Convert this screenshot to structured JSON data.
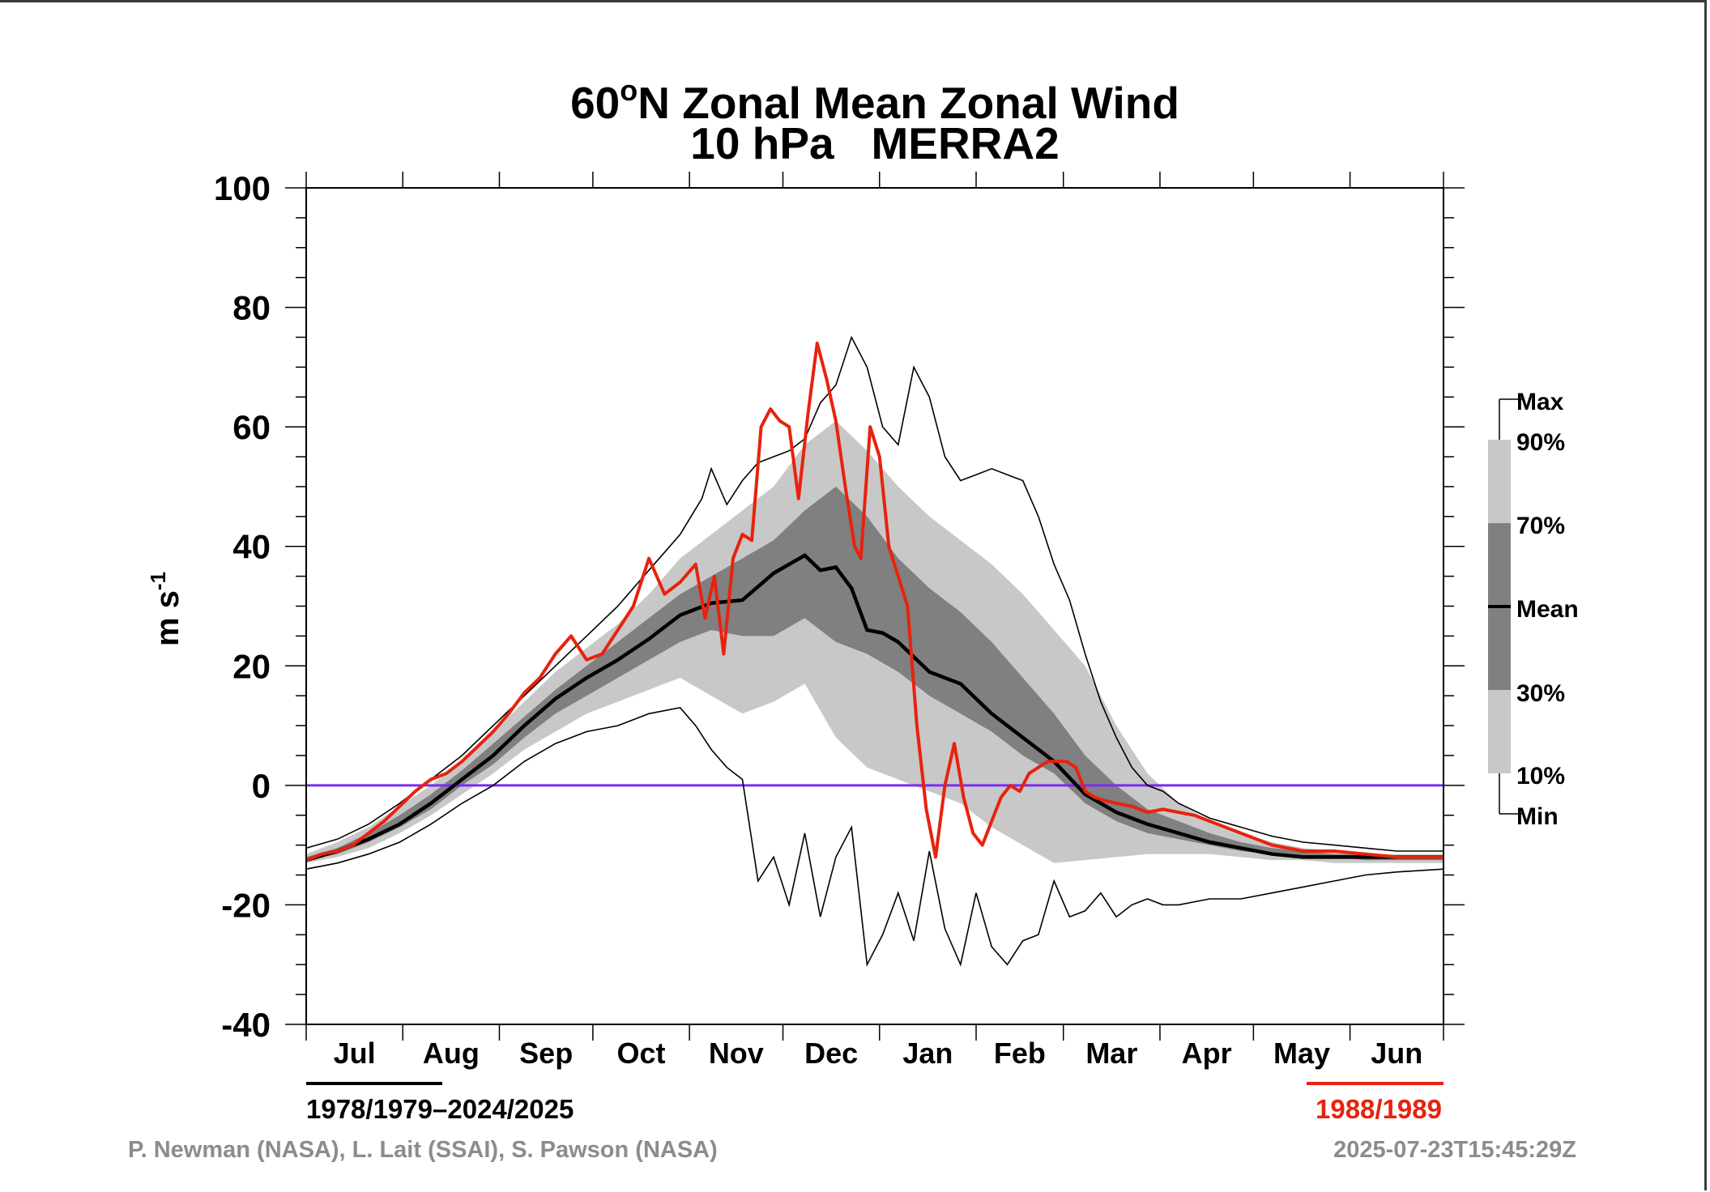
{
  "chart_data": {
    "type": "area",
    "title_prefix": "60",
    "title_sup": "o",
    "title_rest": "N Zonal Mean Zonal Wind",
    "subtitle": "10 hPa   MERRA2",
    "ylabel_base": "m s",
    "ylabel_sup": "-1",
    "ylim": [
      -40,
      100
    ],
    "yticks": [
      -40,
      -20,
      0,
      20,
      40,
      60,
      80,
      100
    ],
    "x_range_days": [
      0,
      365
    ],
    "months": [
      "Jul",
      "Aug",
      "Sep",
      "Oct",
      "Nov",
      "Dec",
      "Jan",
      "Feb",
      "Mar",
      "Apr",
      "May",
      "Jun"
    ],
    "month_lengths": [
      31,
      31,
      30,
      31,
      30,
      31,
      31,
      28,
      31,
      30,
      31,
      30
    ],
    "zero_line_color": "#7b2cf0",
    "band_colors": {
      "outer": "#c8c8c8",
      "inner": "#808080"
    },
    "legend": {
      "max": "Max",
      "p90": "90%",
      "p70": "70%",
      "mean": "Mean",
      "p30": "30%",
      "p10": "10%",
      "min": "Min"
    },
    "climatology_label": "1978/1979–2024/2025",
    "highlight_label": "1988/1989",
    "highlight_color": "#e8220e",
    "credits": "P. Newman (NASA), L. Lait (SSAI), S. Pawson (NASA)",
    "timestamp": "2025-07-23T15:45:29Z",
    "series": {
      "mean": {
        "x": [
          0,
          10,
          20,
          30,
          40,
          50,
          60,
          70,
          80,
          90,
          100,
          110,
          120,
          130,
          140,
          150,
          160,
          165,
          170,
          175,
          180,
          185,
          190,
          195,
          200,
          210,
          220,
          230,
          240,
          250,
          260,
          270,
          280,
          290,
          300,
          310,
          320,
          330,
          340,
          350,
          365
        ],
        "y": [
          -12.5,
          -11,
          -9,
          -6.5,
          -3,
          1,
          5,
          10,
          14.5,
          18,
          21,
          24.5,
          28.5,
          30.5,
          31,
          35.5,
          38.5,
          36,
          36.5,
          33,
          26,
          25.5,
          24,
          21.5,
          19,
          17,
          12,
          8,
          4,
          -1.5,
          -4.5,
          -6.5,
          -8,
          -9.5,
          -10.5,
          -11.5,
          -12,
          -12,
          -12,
          -12,
          -12
        ]
      },
      "p90": {
        "x": [
          0,
          10,
          20,
          30,
          40,
          50,
          60,
          70,
          80,
          90,
          100,
          110,
          120,
          130,
          140,
          150,
          160,
          170,
          180,
          190,
          200,
          210,
          220,
          230,
          240,
          250,
          260,
          270,
          280,
          290,
          300,
          310,
          320,
          330,
          340,
          350,
          365
        ],
        "y": [
          -11.5,
          -9.5,
          -7,
          -3.5,
          0,
          4,
          9,
          14,
          19,
          23,
          27,
          32,
          38,
          42,
          46,
          50,
          57,
          61,
          56,
          50,
          45,
          41,
          37,
          32,
          26,
          20,
          10,
          2,
          -3,
          -6,
          -8,
          -9.5,
          -10.5,
          -11,
          -11.5,
          -11.5,
          -11.5
        ]
      },
      "p70": {
        "x": [
          0,
          10,
          20,
          30,
          40,
          50,
          60,
          70,
          80,
          90,
          100,
          110,
          120,
          130,
          140,
          150,
          160,
          170,
          180,
          190,
          200,
          210,
          220,
          230,
          240,
          250,
          260,
          270,
          280,
          290,
          300,
          310,
          320,
          330,
          340,
          350,
          365
        ],
        "y": [
          -12,
          -10.5,
          -8,
          -5,
          -1.5,
          2.5,
          7,
          11.5,
          16,
          20,
          24,
          28,
          32,
          35,
          38,
          41,
          46,
          50,
          45,
          38,
          33,
          29,
          24,
          18,
          12,
          5,
          0,
          -4,
          -6,
          -8,
          -9.5,
          -10.5,
          -11,
          -11.5,
          -11.5,
          -12,
          -12
        ]
      },
      "p30": {
        "x": [
          0,
          10,
          20,
          30,
          40,
          50,
          60,
          70,
          80,
          90,
          100,
          110,
          120,
          130,
          140,
          150,
          160,
          170,
          180,
          190,
          200,
          210,
          220,
          230,
          240,
          250,
          260,
          270,
          280,
          290,
          300,
          310,
          320,
          330,
          340,
          350,
          365
        ],
        "y": [
          -12.5,
          -11.5,
          -9.5,
          -7,
          -4,
          0,
          3.5,
          8,
          12,
          15,
          18,
          21,
          24,
          26,
          25,
          25,
          28,
          24,
          22,
          19,
          15,
          12,
          9,
          5,
          2,
          -3,
          -6,
          -8,
          -9,
          -10,
          -11,
          -11.5,
          -12,
          -12,
          -12.5,
          -12.5,
          -12.5
        ]
      },
      "p10": {
        "x": [
          0,
          10,
          20,
          30,
          40,
          50,
          60,
          70,
          80,
          90,
          100,
          110,
          120,
          130,
          140,
          150,
          160,
          170,
          180,
          190,
          200,
          210,
          220,
          230,
          240,
          250,
          260,
          270,
          280,
          290,
          300,
          310,
          320,
          330,
          340,
          350,
          365
        ],
        "y": [
          -13,
          -12,
          -10.5,
          -8,
          -5,
          -1.5,
          2,
          6,
          9,
          12,
          14,
          16,
          18,
          15,
          12,
          14,
          17,
          8,
          3,
          1,
          -1,
          -3,
          -7,
          -10,
          -13,
          -12.5,
          -12,
          -11.5,
          -11.5,
          -11.5,
          -12,
          -12.5,
          -12.5,
          -13,
          -13,
          -13,
          -13
        ]
      },
      "max": {
        "x": [
          0,
          10,
          20,
          30,
          40,
          50,
          60,
          70,
          80,
          90,
          100,
          110,
          120,
          127,
          130,
          135,
          140,
          145,
          150,
          155,
          160,
          165,
          170,
          175,
          180,
          185,
          190,
          195,
          200,
          205,
          210,
          215,
          220,
          225,
          230,
          235,
          240,
          245,
          250,
          255,
          260,
          265,
          270,
          275,
          280,
          290,
          300,
          310,
          320,
          330,
          340,
          350,
          365
        ],
        "y": [
          -10.5,
          -9,
          -6.5,
          -3,
          1,
          5,
          10,
          15,
          20,
          25,
          30,
          36,
          42,
          48,
          53,
          47,
          51,
          54,
          55,
          56,
          58,
          64,
          67,
          75,
          70,
          60,
          57,
          70,
          65,
          55,
          51,
          52,
          53,
          52,
          51,
          45,
          37,
          31,
          22,
          14,
          8,
          3,
          0,
          -1,
          -3,
          -5.5,
          -7,
          -8.5,
          -9.5,
          -10,
          -10.5,
          -11,
          -11
        ]
      },
      "min": {
        "x": [
          0,
          10,
          20,
          30,
          40,
          50,
          60,
          70,
          80,
          90,
          100,
          110,
          120,
          125,
          130,
          135,
          140,
          145,
          150,
          155,
          160,
          165,
          170,
          175,
          180,
          185,
          190,
          195,
          200,
          205,
          210,
          215,
          220,
          225,
          230,
          235,
          240,
          245,
          250,
          255,
          260,
          265,
          270,
          275,
          280,
          290,
          300,
          310,
          320,
          330,
          340,
          350,
          365
        ],
        "y": [
          -14,
          -13,
          -11.5,
          -9.5,
          -6.5,
          -3,
          0,
          4,
          7,
          9,
          10,
          12,
          13,
          10,
          6,
          3,
          1,
          -16,
          -12,
          -20,
          -8,
          -22,
          -12,
          -7,
          -30,
          -25,
          -18,
          -26,
          -11,
          -24,
          -30,
          -18,
          -27,
          -30,
          -26,
          -25,
          -16,
          -22,
          -21,
          -18,
          -22,
          -20,
          -19,
          -20,
          -20,
          -19,
          -19,
          -18,
          -17,
          -16,
          -15,
          -14.5,
          -14
        ]
      },
      "year_1988_1989": {
        "x": [
          0,
          5,
          10,
          15,
          20,
          25,
          30,
          35,
          40,
          45,
          50,
          55,
          60,
          65,
          70,
          75,
          80,
          85,
          90,
          95,
          100,
          105,
          110,
          115,
          120,
          125,
          128,
          131,
          134,
          137,
          140,
          143,
          146,
          149,
          152,
          155,
          158,
          161,
          164,
          167,
          170,
          173,
          176,
          178,
          181,
          184,
          187,
          190,
          193,
          196,
          199,
          202,
          205,
          208,
          211,
          214,
          217,
          220,
          223,
          226,
          229,
          232,
          235,
          238,
          241,
          244,
          247,
          250,
          253,
          256,
          260,
          265,
          270,
          275,
          280,
          285,
          290,
          300,
          310,
          320,
          330,
          340,
          350,
          365
        ],
        "y": [
          -12.5,
          -11.5,
          -11,
          -10,
          -8,
          -6,
          -3.5,
          -1,
          1,
          2,
          4,
          6.5,
          9,
          12,
          15.5,
          18,
          22,
          25,
          21,
          22,
          26,
          30,
          38,
          32,
          34,
          37,
          28,
          35,
          22,
          38,
          42,
          41,
          60,
          63,
          61,
          60,
          48,
          62,
          74,
          68,
          61,
          50,
          40,
          38,
          60,
          55,
          40,
          35,
          30,
          10,
          -4,
          -12,
          0,
          7,
          -2,
          -8,
          -10,
          -6,
          -2,
          0,
          -1,
          2,
          3,
          4,
          4,
          4,
          3,
          -1,
          -2,
          -2.5,
          -3,
          -3.5,
          -4.5,
          -4,
          -4.5,
          -5,
          -6,
          -8,
          -10,
          -11,
          -11,
          -11.5,
          -12,
          -12
        ]
      }
    }
  }
}
